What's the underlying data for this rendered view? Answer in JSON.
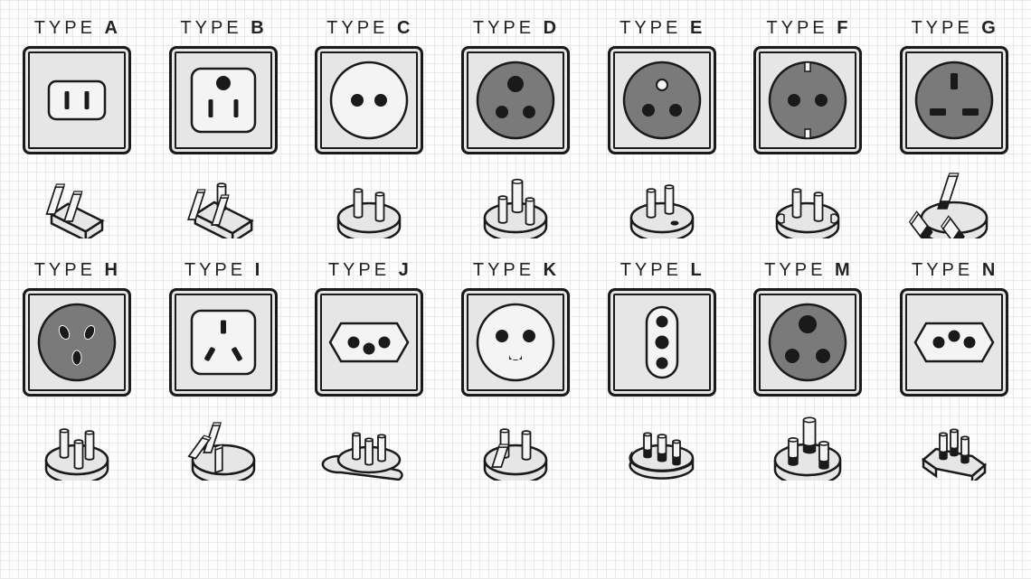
{
  "style": {
    "bg": "#fdfdfd",
    "grid_line": "#e9e9e9",
    "stroke": "#1a1a1a",
    "plate_fill": "#e6e6e6",
    "dark_fill": "#7a7a7a",
    "light_fill": "#f4f4f4",
    "label_prefix": "TYPE",
    "label_fontsize": 20,
    "label_letter_spacing": 4,
    "socket_size": 120,
    "stroke_w": 2.5,
    "grid_cols": 7,
    "grid_rows": 2,
    "col_gap": 28
  },
  "types": [
    {
      "id": "A",
      "label": "A",
      "socket": "A",
      "plug": "A"
    },
    {
      "id": "B",
      "label": "B",
      "socket": "B",
      "plug": "B"
    },
    {
      "id": "C",
      "label": "C",
      "socket": "C",
      "plug": "C"
    },
    {
      "id": "D",
      "label": "D",
      "socket": "D",
      "plug": "D"
    },
    {
      "id": "E",
      "label": "E",
      "socket": "E",
      "plug": "E"
    },
    {
      "id": "F",
      "label": "F",
      "socket": "F",
      "plug": "F"
    },
    {
      "id": "G",
      "label": "G",
      "socket": "G",
      "plug": "G"
    },
    {
      "id": "H",
      "label": "H",
      "socket": "H",
      "plug": "H"
    },
    {
      "id": "I",
      "label": "I",
      "socket": "I",
      "plug": "I"
    },
    {
      "id": "J",
      "label": "J",
      "socket": "J",
      "plug": "J"
    },
    {
      "id": "K",
      "label": "K",
      "socket": "K",
      "plug": "K"
    },
    {
      "id": "L",
      "label": "L",
      "socket": "L",
      "plug": "L"
    },
    {
      "id": "M",
      "label": "M",
      "socket": "M",
      "plug": "M"
    },
    {
      "id": "N",
      "label": "N",
      "socket": "N",
      "plug": "N"
    }
  ]
}
